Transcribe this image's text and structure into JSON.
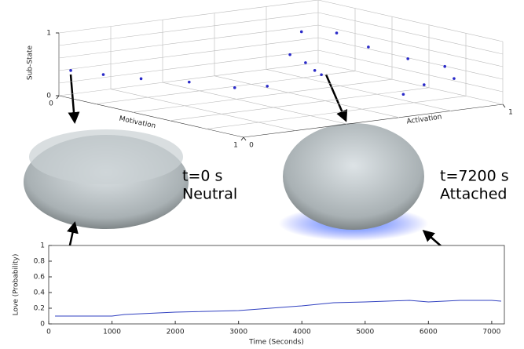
{
  "chart_data": [
    {
      "type": "scatter3d",
      "xlabel": "Motivation",
      "ylabel": "Activation",
      "zlabel": "Sub-State",
      "xlim": [
        0,
        1
      ],
      "ylim": [
        0,
        1
      ],
      "zlim": [
        0,
        1
      ],
      "xticks": [
        0,
        1
      ],
      "yticks": [
        0,
        1
      ],
      "zticks": [
        0,
        1
      ],
      "grid": true,
      "series": [
        {
          "color": "#2a2ac8",
          "x": [
            0.05,
            0.1,
            0.15,
            0.2,
            0.25,
            0.3,
            0.1,
            0.1,
            0.2,
            0.05,
            0.1,
            0.3,
            0.5,
            0.7,
            0.75,
            0.7,
            0.7,
            0.15
          ],
          "y": [
            0.01,
            0.1,
            0.21,
            0.36,
            0.5,
            0.59,
            0.82,
            0.88,
            0.87,
            0.9,
            1.0,
            0.98,
            0.99,
            0.99,
            0.99,
            0.91,
            0.83,
            0.88
          ],
          "z": [
            0.43,
            0.35,
            0.26,
            0.16,
            0.03,
            0.04,
            0.29,
            0.13,
            0.01,
            0.58,
            0.54,
            0.46,
            0.4,
            0.41,
            0.25,
            0.16,
            0.05,
            0.04
          ]
        }
      ]
    },
    {
      "type": "line",
      "xlabel": "Time (Seconds)",
      "ylabel": "Love (Probability)",
      "xlim": [
        0,
        7200
      ],
      "ylim": [
        0,
        1
      ],
      "xticks": [
        0,
        1000,
        2000,
        3000,
        4000,
        5000,
        6000,
        7000
      ],
      "yticks": [
        0,
        0.2,
        0.4,
        0.6,
        0.8,
        1
      ],
      "series": [
        {
          "color": "#3040c0",
          "x": [
            100,
            1000,
            1200,
            2000,
            3000,
            3500,
            4000,
            4500,
            5000,
            5700,
            6000,
            6500,
            7000,
            7150
          ],
          "values": [
            0.1,
            0.1,
            0.12,
            0.15,
            0.17,
            0.2,
            0.23,
            0.27,
            0.28,
            0.3,
            0.28,
            0.3,
            0.3,
            0.29
          ]
        }
      ]
    }
  ],
  "annotations": [
    {
      "time": "t=0 s",
      "state": "Neutral"
    },
    {
      "time": "t=7200 s",
      "state": "Attached"
    }
  ]
}
